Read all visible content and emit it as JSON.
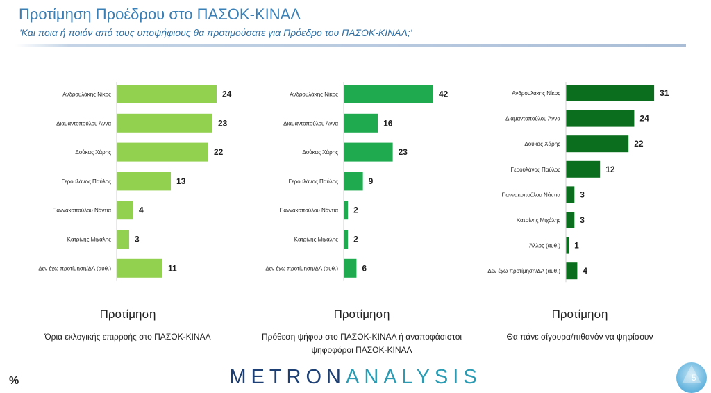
{
  "header": {
    "title": "Προτίμηση Προέδρου στο ΠΑΣΟΚ-ΚΙΝΑΛ",
    "subtitle": "'Και ποια ή ποιόν από τους υποψήφιους θα προτιμούσατε για Πρόεδρο του ΠΑΣΟΚ-ΚΙΝΑΛ;'"
  },
  "colors": {
    "panel1": "#92d050",
    "panel2": "#1faa4f",
    "panel3": "#0a6e1e"
  },
  "chart_data": [
    {
      "type": "bar",
      "orientation": "horizontal",
      "title": "Προτίμηση",
      "subtitle": "Όρια εκλογικής επιρροής στο ΠΑΣΟΚ-ΚΙΝΑΛ",
      "categories": [
        "Ανδρουλάκης Νίκος",
        "Διαμαντοπούλου Άννα",
        "Δούκας Χάρης",
        "Γερουλάνος Παύλος",
        "Γιαννακοπούλου Νάντια",
        "Κατρίνης Μιχάλης",
        "Δεν έχω προτίμηση/ΔΑ (αυθ.)"
      ],
      "values": [
        24,
        23,
        22,
        13,
        4,
        3,
        11
      ],
      "color": "#92d050"
    },
    {
      "type": "bar",
      "orientation": "horizontal",
      "title": "Προτίμηση",
      "subtitle": "Πρόθεση ψήφου στο ΠΑΣΟΚ-ΚΙΝΑΛ ή αναποφάσιστοι ψηφοφόροι ΠΑΣΟΚ-ΚΙΝΑΛ",
      "categories": [
        "Ανδρουλάκης Νίκος",
        "Διαμαντοπούλου Άννα",
        "Δούκας Χάρης",
        "Γερουλάνος Παύλος",
        "Γιαννακοπούλου Νάντια",
        "Κατρίνης Μιχάλης",
        "Δεν έχω προτίμηση/ΔΑ (αυθ.)"
      ],
      "values": [
        42,
        16,
        23,
        9,
        2,
        2,
        6
      ],
      "color": "#1faa4f"
    },
    {
      "type": "bar",
      "orientation": "horizontal",
      "title": "Προτίμηση",
      "subtitle": "Θα πάνε σίγουρα/πιθανόν να ψηφίσουν",
      "categories": [
        "Ανδρουλάκης Νίκος",
        "Διαμαντοπούλου Άννα",
        "Δούκας Χάρης",
        "Γερουλάνος Παύλος",
        "Γιαννακοπούλου Νάντια",
        "Κατρίνης Μιχάλης",
        "Άλλος (αυθ.)",
        "Δεν έχω προτίμηση/ΔΑ (αυθ.)"
      ],
      "values": [
        31,
        24,
        22,
        12,
        3,
        3,
        1,
        4
      ],
      "color": "#0a6e1e"
    }
  ],
  "footer": {
    "unit": "%",
    "logo_part1": "METRON",
    "logo_part2": "ANALYSIS",
    "page_number": "5"
  }
}
